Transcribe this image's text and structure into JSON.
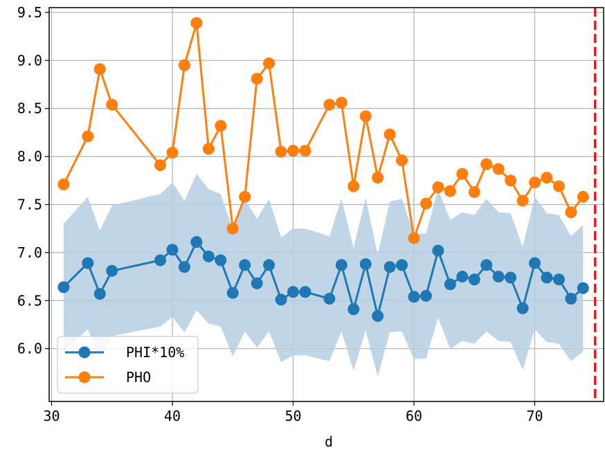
{
  "chart_data": {
    "type": "line",
    "xlabel": "d",
    "ylabel": "",
    "title": "",
    "xlim": [
      29.8,
      75.7
    ],
    "ylim": [
      5.45,
      9.55
    ],
    "xticks": [
      "30",
      "40",
      "50",
      "60",
      "70"
    ],
    "xtick_values": [
      30,
      40,
      50,
      60,
      70
    ],
    "yticks": [
      "6.0",
      "6.5",
      "7.0",
      "7.5",
      "8.0",
      "8.5",
      "9.0",
      "9.5"
    ],
    "ytick_values": [
      6.0,
      6.5,
      7.0,
      7.5,
      8.0,
      8.5,
      9.0,
      9.5
    ],
    "grid": true,
    "legend_position": "lower-left",
    "vline": {
      "x": 75,
      "color": "#e31a1c",
      "style": "dashed"
    },
    "x": [
      31,
      33,
      34,
      35,
      39,
      40,
      41,
      42,
      43,
      44,
      45,
      46,
      47,
      48,
      49,
      50,
      51,
      53,
      54,
      55,
      56,
      57,
      58,
      59,
      60,
      61,
      62,
      63,
      64,
      65,
      66,
      67,
      68,
      69,
      70,
      71,
      72,
      73,
      74
    ],
    "series": [
      {
        "name": "PHI*10%",
        "color": "#1f77b4",
        "values": [
          6.64,
          6.89,
          6.57,
          6.81,
          6.92,
          7.03,
          6.85,
          7.11,
          6.96,
          6.92,
          6.58,
          6.87,
          6.68,
          6.87,
          6.51,
          6.59,
          6.59,
          6.52,
          6.87,
          6.41,
          6.88,
          6.34,
          6.85,
          6.87,
          6.54,
          6.55,
          7.02,
          6.67,
          6.75,
          6.72,
          6.87,
          6.75,
          6.74,
          6.42,
          6.89,
          6.74,
          6.72,
          6.52,
          6.63
        ],
        "band_upper": [
          7.3,
          7.58,
          7.23,
          7.49,
          7.61,
          7.73,
          7.54,
          7.82,
          7.66,
          7.61,
          7.24,
          7.56,
          7.35,
          7.56,
          7.16,
          7.25,
          7.25,
          7.17,
          7.56,
          7.05,
          7.57,
          6.98,
          7.53,
          7.56,
          7.19,
          7.2,
          7.66,
          7.34,
          7.42,
          7.39,
          7.56,
          7.42,
          7.41,
          7.06,
          7.58,
          7.41,
          7.39,
          7.17,
          7.29
        ],
        "band_lower": [
          5.98,
          6.2,
          5.91,
          6.13,
          6.23,
          6.33,
          6.17,
          6.4,
          6.26,
          6.23,
          5.92,
          6.18,
          6.01,
          6.18,
          5.86,
          5.93,
          5.93,
          5.87,
          6.18,
          5.77,
          6.19,
          5.71,
          6.17,
          6.18,
          5.89,
          5.9,
          6.32,
          6.0,
          6.08,
          6.05,
          6.18,
          6.08,
          6.07,
          5.78,
          6.2,
          6.07,
          6.05,
          5.87,
          5.97
        ],
        "band_color": "#b5cfe3"
      },
      {
        "name": "PHO",
        "color": "#ff7f0e",
        "values": [
          7.71,
          8.21,
          8.91,
          8.54,
          7.91,
          8.04,
          8.95,
          9.39,
          8.08,
          8.32,
          7.25,
          7.58,
          8.81,
          8.97,
          8.05,
          8.06,
          8.06,
          8.54,
          8.56,
          7.69,
          8.42,
          7.78,
          8.23,
          7.96,
          7.15,
          7.51,
          7.68,
          7.64,
          7.82,
          7.63,
          7.92,
          7.87,
          7.75,
          7.54,
          7.73,
          7.78,
          7.69,
          7.42,
          7.58
        ]
      }
    ]
  }
}
